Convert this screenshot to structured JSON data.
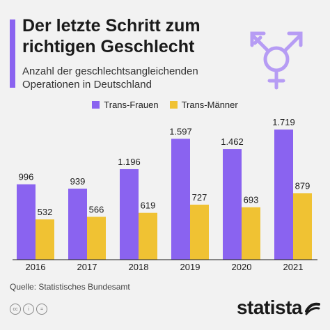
{
  "header": {
    "title": "Der letzte Schritt zum richtigen Geschlecht",
    "subtitle": "Anzahl der geschlechtsangleichenden Operationen in Deutschland"
  },
  "legend": [
    {
      "label": "Trans-Frauen",
      "color": "#8a63f0"
    },
    {
      "label": "Trans-Männer",
      "color": "#f0c233"
    }
  ],
  "chart_data": {
    "type": "bar",
    "categories": [
      "2016",
      "2017",
      "2018",
      "2019",
      "2020",
      "2021"
    ],
    "series": [
      {
        "name": "Trans-Frauen",
        "color": "#8a63f0",
        "values": [
          996,
          939,
          1196,
          1597,
          1462,
          1719
        ],
        "labels": [
          "996",
          "939",
          "1.196",
          "1.597",
          "1.462",
          "1.719"
        ]
      },
      {
        "name": "Trans-Männer",
        "color": "#f0c233",
        "values": [
          532,
          566,
          619,
          727,
          693,
          879
        ],
        "labels": [
          "532",
          "566",
          "619",
          "727",
          "693",
          "879"
        ]
      }
    ],
    "ylim": [
      0,
      1950
    ],
    "grid": false,
    "legend_position": "top"
  },
  "footer": {
    "source": "Quelle: Statistisches Bundesamt",
    "brand": "statista",
    "license_icons": [
      "cc",
      "i",
      "="
    ]
  }
}
